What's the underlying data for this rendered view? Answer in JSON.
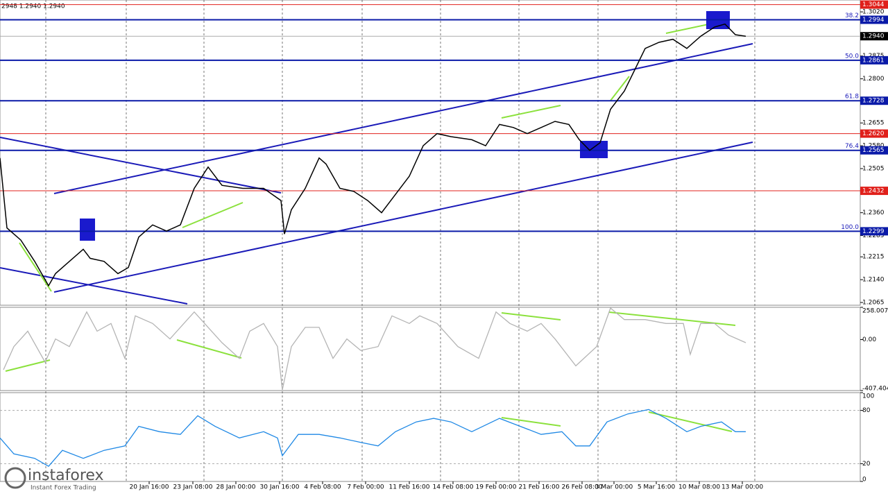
{
  "header": {
    "ohlc": "2948 1.2940 1.2940"
  },
  "branding": {
    "name": "instaforex",
    "tagline": "Instant Forex Trading"
  },
  "chart_data": [
    {
      "type": "line",
      "panel": "price",
      "color": "#000000",
      "xlim": [
        0,
        310
      ],
      "ylim": [
        1.2056,
        1.3059
      ],
      "xticks": [
        {
          "value": 53.75,
          "label": "20 Jan 16:00"
        },
        {
          "value": 69.5,
          "label": "23 Jan 08:00"
        },
        {
          "value": 85,
          "label": "28 Jan 00:00"
        },
        {
          "value": 100.75,
          "label": "30 Jan 16:00"
        },
        {
          "value": 116.25,
          "label": "4 Feb 08:00"
        },
        {
          "value": 131.75,
          "label": "7 Feb 00:00"
        },
        {
          "value": 147.5,
          "label": "11 Feb 16:00"
        },
        {
          "value": 163.25,
          "label": "14 Feb 08:00"
        },
        {
          "value": 178.75,
          "label": "19 Feb 00:00"
        },
        {
          "value": 194.25,
          "label": "21 Feb 16:00"
        },
        {
          "value": 209.75,
          "label": "26 Feb 08:00"
        },
        {
          "value": 221.25,
          "label": "3 Mar 00:00"
        },
        {
          "value": 236.5,
          "label": "5 Mar 16:00"
        },
        {
          "value": 252,
          "label": "10 Mar 08:00"
        },
        {
          "value": 267.5,
          "label": "13 Mar 00:00"
        }
      ],
      "yticks": [
        {
          "value": 1.302,
          "label": "1.3020"
        },
        {
          "value": 1.2875,
          "label": "1.2875"
        },
        {
          "value": 1.28,
          "label": "1.2800"
        },
        {
          "value": 1.2655,
          "label": "1.2655"
        },
        {
          "value": 1.258,
          "label": "1.2580"
        },
        {
          "value": 1.2505,
          "label": "1.2505"
        },
        {
          "value": 1.236,
          "label": "1.2360"
        },
        {
          "value": 1.2285,
          "label": "1.2285"
        },
        {
          "value": 1.2215,
          "label": "1.2215"
        },
        {
          "value": 1.214,
          "label": "1.2140"
        },
        {
          "value": 1.2065,
          "label": "1.2065"
        }
      ],
      "levels": [
        {
          "value": 1.3044,
          "label": "1.3044",
          "color": "#e0201b"
        },
        {
          "value": 1.2994,
          "label": "1.2994",
          "color": "#0a1aa8",
          "fib": "38.2"
        },
        {
          "value": 1.294,
          "label": "1.2940",
          "color": "#000000"
        },
        {
          "value": 1.2861,
          "label": "1.2861",
          "color": "#0a1aa8",
          "fib": "50.0"
        },
        {
          "value": 1.2728,
          "label": "1.2728",
          "color": "#0a1aa8",
          "fib": "61.8"
        },
        {
          "value": 1.262,
          "label": "1.2620",
          "color": "#e0201b"
        },
        {
          "value": 1.2565,
          "label": "1.2565",
          "color": "#0a1aa8",
          "fib": "76.4"
        },
        {
          "value": 1.2432,
          "label": "1.2432",
          "color": "#e0201b"
        },
        {
          "value": 1.2299,
          "label": "1.2299",
          "color": "#0a1aa8",
          "fib": "100.0"
        }
      ],
      "x": [
        0,
        2.5,
        7.5,
        12.5,
        17.5,
        20,
        25,
        30,
        32.5,
        37.5,
        42.5,
        46.25,
        50,
        55,
        60,
        65,
        70,
        75,
        80,
        87.5,
        95,
        101.25,
        102.5,
        105,
        110,
        115,
        117.5,
        122.5,
        127.5,
        132.5,
        137.5,
        142.5,
        147.5,
        152.5,
        157.5,
        162.5,
        170,
        175,
        180,
        185,
        190,
        195,
        200,
        205,
        208.75,
        212.5,
        216.25,
        220,
        225,
        228.75,
        232.5,
        237.5,
        242.5,
        247.5,
        252.5,
        257.5,
        261.25,
        265,
        268.75
      ],
      "values": [
        1.254,
        1.231,
        1.227,
        1.22,
        1.212,
        1.216,
        1.22,
        1.224,
        1.221,
        1.22,
        1.216,
        1.218,
        1.228,
        1.232,
        1.23,
        1.232,
        1.244,
        1.251,
        1.245,
        1.244,
        1.244,
        1.24,
        1.229,
        1.237,
        1.244,
        1.254,
        1.252,
        1.244,
        1.243,
        1.24,
        1.236,
        1.242,
        1.248,
        1.258,
        1.262,
        1.261,
        1.26,
        1.258,
        1.265,
        1.264,
        1.262,
        1.264,
        1.266,
        1.265,
        1.26,
        1.2565,
        1.259,
        1.27,
        1.276,
        1.283,
        1.29,
        1.292,
        1.293,
        1.29,
        1.294,
        1.297,
        1.298,
        1.2945,
        1.294
      ]
    },
    {
      "type": "line",
      "panel": "cci",
      "color": "#b4b4b4",
      "ylim": [
        -407.404,
        258.0074
      ],
      "yticks": [
        {
          "value": 258.0074,
          "label": "258.0074"
        },
        {
          "value": 0,
          "label": "0.00"
        },
        {
          "value": -407.404,
          "label": "-407.404"
        }
      ],
      "x": [
        1.25,
        5,
        10,
        16.25,
        20,
        25,
        31.25,
        35,
        40,
        45,
        48.75,
        55,
        61.25,
        66.25,
        70,
        75,
        80,
        86.25,
        90,
        95,
        100,
        101.75,
        105,
        110,
        115,
        120,
        125,
        130,
        136.25,
        141.25,
        147.5,
        151.25,
        157.5,
        165,
        172.5,
        178.75,
        183.75,
        190,
        195,
        200,
        207.5,
        215,
        220,
        225,
        232.5,
        240,
        246.25,
        248.75,
        252.5,
        257.5,
        262.5,
        268.75
      ],
      "values": [
        -241,
        -56,
        67,
        -180,
        5,
        -56,
        221,
        67,
        129,
        -150,
        190,
        129,
        5,
        129,
        221,
        98,
        -25,
        -150,
        67,
        129,
        -56,
        -402,
        -56,
        98,
        98,
        -150,
        5,
        -87,
        -56,
        190,
        129,
        190,
        129,
        -56,
        -150,
        221,
        129,
        67,
        129,
        5,
        -210,
        -56,
        252,
        160,
        160,
        129,
        129,
        -118,
        129,
        129,
        36,
        -25
      ]
    },
    {
      "type": "line",
      "panel": "rsi",
      "color": "#1e88e5",
      "ylim": [
        0,
        100
      ],
      "yticks": [
        100,
        80,
        20,
        0
      ],
      "x": [
        0,
        5,
        12.5,
        17.5,
        22.5,
        30,
        37.5,
        45,
        50,
        57.5,
        65,
        71.25,
        77.5,
        86.25,
        95,
        100,
        101.75,
        107.5,
        115,
        122.5,
        130,
        136.25,
        142.5,
        150,
        156.25,
        162.5,
        170,
        180,
        187.5,
        195,
        202.5,
        207.5,
        212.5,
        218.75,
        226.25,
        233.75,
        240,
        247.5,
        252.5,
        260,
        265,
        268.75
      ],
      "values": [
        49,
        31,
        26,
        17,
        35,
        26,
        35,
        40,
        62,
        56,
        53,
        74,
        62,
        49,
        56,
        49,
        29,
        53,
        53,
        49,
        44,
        40,
        56,
        67,
        71,
        67,
        56,
        71,
        62,
        53,
        56,
        40,
        40,
        67,
        76,
        81,
        71,
        56,
        62,
        67,
        56,
        56
      ]
    }
  ]
}
